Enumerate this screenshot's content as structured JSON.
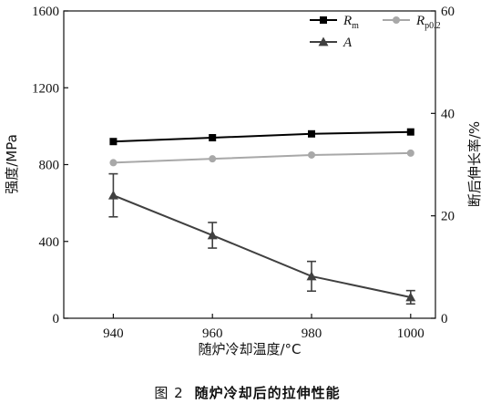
{
  "caption": {
    "label": "图 2",
    "text": "随炉冷却后的拉伸性能"
  },
  "chart_data": {
    "type": "line",
    "xlabel": "随炉冷却温度/°C",
    "ylabel": "强度/MPa",
    "y2label": "断后伸长率/%",
    "x": [
      940,
      960,
      980,
      1000
    ],
    "xticks": [
      940,
      960,
      980,
      1000
    ],
    "xlim": [
      930,
      1005
    ],
    "ylim": [
      0,
      1600
    ],
    "yticks": [
      0,
      400,
      800,
      1200,
      1600
    ],
    "y2lim": [
      0,
      60
    ],
    "y2ticks": [
      0,
      20,
      40,
      60
    ],
    "legend_placement": "top-right",
    "grid": false,
    "series": [
      {
        "name": "R",
        "sub": "m",
        "axis": "left",
        "marker": "square",
        "color": "#000000",
        "values": [
          920,
          940,
          960,
          970
        ]
      },
      {
        "name": "R",
        "sub": "p0.2",
        "axis": "left",
        "marker": "circle",
        "color": "#a8a8a8",
        "values": [
          810,
          830,
          850,
          860
        ]
      },
      {
        "name": "A",
        "sub": "",
        "axis": "right",
        "marker": "triangle",
        "color": "#404040",
        "values": [
          24,
          16.2,
          8.2,
          4.1
        ],
        "error": [
          4.2,
          2.5,
          2.9,
          1.3
        ]
      }
    ]
  }
}
